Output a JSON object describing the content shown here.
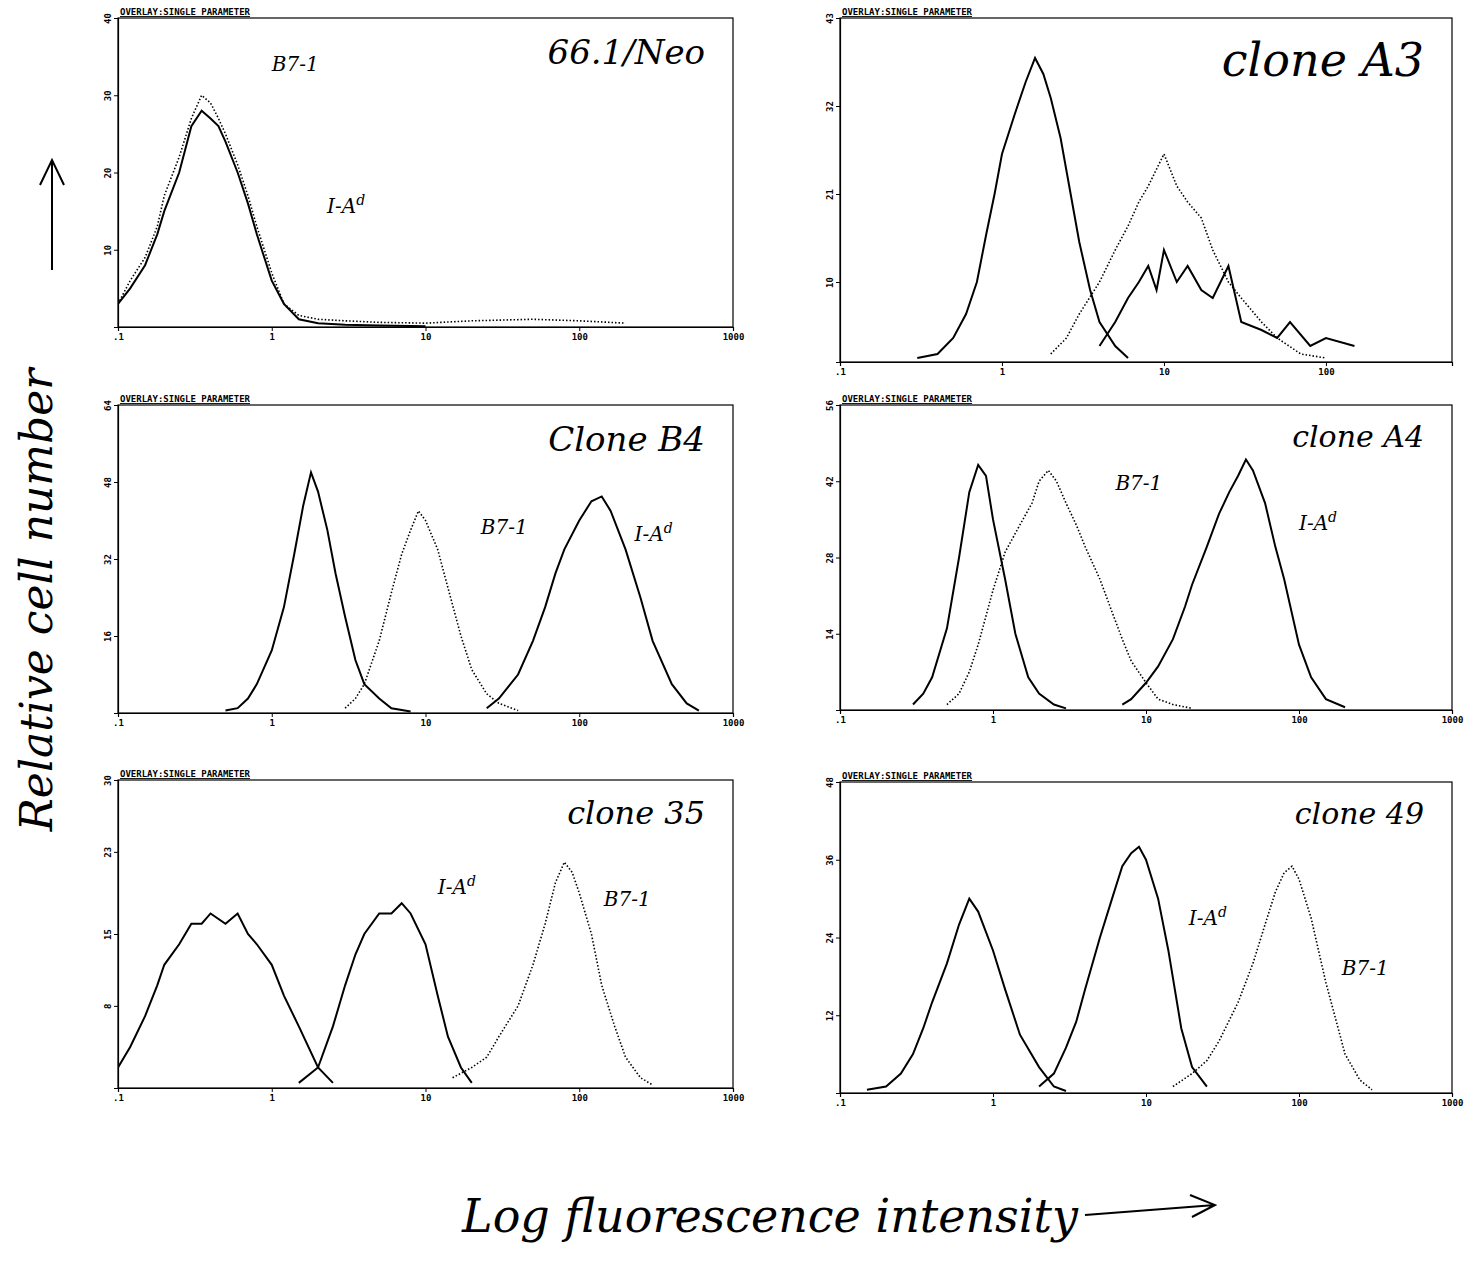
{
  "x_label": "Log fluorescence intensity",
  "y_label": "Relative cell number",
  "chart_data": [
    {
      "type": "line",
      "title": "66.1/Neo",
      "subtitle": "OVERLAY:SINGLE PARAMETER",
      "log": "x",
      "xlim": [
        0.1,
        1000
      ],
      "xticks": [
        {
          "value": 0.1,
          "label": ".1"
        },
        1,
        10,
        100,
        1000
      ],
      "ylim": [
        0,
        40
      ],
      "yticks": [
        10,
        20,
        30,
        40
      ],
      "annotations": [
        "B7-1",
        "I-Ad"
      ],
      "series": [
        {
          "color": "#000000",
          "line_style": "solid",
          "x": [
            0.1,
            0.12,
            0.15,
            0.18,
            0.2,
            0.25,
            0.3,
            0.35,
            0.4,
            0.45,
            0.5,
            0.6,
            0.7,
            0.8,
            1.0,
            1.2,
            1.5,
            2,
            3,
            5,
            10
          ],
          "values": [
            3,
            5,
            8,
            12,
            15,
            20,
            26,
            28,
            27,
            26,
            24,
            20,
            16,
            12,
            6,
            3,
            1,
            0.5,
            0.3,
            0.2,
            0.1
          ]
        },
        {
          "color": "#000000",
          "line_style": "dotted",
          "x": [
            0.1,
            0.12,
            0.15,
            0.18,
            0.2,
            0.25,
            0.3,
            0.35,
            0.4,
            0.45,
            0.5,
            0.6,
            0.7,
            0.8,
            1.0,
            1.2,
            1.5,
            2,
            3,
            5,
            10,
            20,
            50,
            100,
            200
          ],
          "values": [
            3,
            6,
            9,
            13,
            17,
            22,
            27,
            30,
            29,
            27,
            25,
            21,
            17,
            13,
            7,
            3,
            1.5,
            1,
            0.8,
            0.6,
            0.5,
            0.8,
            1,
            0.8,
            0.5
          ]
        }
      ]
    },
    {
      "type": "line",
      "title": "clone A3",
      "subtitle": "OVERLAY:SINGLE PARAMETER",
      "log": "x",
      "xlim": [
        0.1,
        600
      ],
      "xticks": [
        {
          "value": 0.1,
          "label": ".1"
        },
        1,
        10,
        100
      ],
      "ylim": [
        0,
        43
      ],
      "yticks": [
        10,
        21,
        32,
        43
      ],
      "annotations": [],
      "series": [
        {
          "color": "#000000",
          "line_style": "solid",
          "x": [
            0.3,
            0.4,
            0.5,
            0.6,
            0.7,
            0.8,
            0.9,
            1,
            1.2,
            1.4,
            1.6,
            1.8,
            2,
            2.3,
            2.6,
            3,
            3.5,
            4,
            5,
            6
          ],
          "values": [
            0.5,
            1,
            3,
            6,
            10,
            16,
            21,
            26,
            31,
            35,
            38,
            36,
            33,
            28,
            22,
            15,
            9,
            5,
            2,
            0.5
          ]
        },
        {
          "color": "#000000",
          "line_style": "solid",
          "x": [
            4,
            5,
            6,
            7,
            8,
            9,
            10,
            12,
            14,
            17,
            20,
            25,
            30,
            40,
            50,
            60,
            80,
            100,
            150
          ],
          "values": [
            2,
            5,
            8,
            10,
            12,
            9,
            14,
            10,
            12,
            9,
            8,
            12,
            5,
            4,
            3,
            5,
            2,
            3,
            2
          ]
        },
        {
          "color": "#000000",
          "line_style": "dotted",
          "x": [
            2,
            2.5,
            3,
            4,
            5,
            6,
            7,
            8,
            10,
            12,
            14,
            17,
            20,
            25,
            30,
            40,
            50,
            70,
            100
          ],
          "values": [
            1,
            3,
            6,
            10,
            14,
            17,
            20,
            22,
            26,
            22,
            20,
            18,
            14,
            10,
            8,
            5,
            3,
            1,
            0.5
          ]
        }
      ]
    },
    {
      "type": "line",
      "title": "Clone B4",
      "subtitle": "OVERLAY:SINGLE PARAMETER",
      "log": "x",
      "xlim": [
        0.1,
        1000
      ],
      "xticks": [
        {
          "value": 0.1,
          "label": ".1"
        },
        1,
        10,
        100,
        1000
      ],
      "ylim": [
        0,
        64
      ],
      "yticks": [
        16,
        32,
        48,
        64
      ],
      "annotations": [
        "B7-1",
        "I-Ad"
      ],
      "series": [
        {
          "color": "#000000",
          "line_style": "solid",
          "x": [
            0.5,
            0.6,
            0.7,
            0.8,
            1,
            1.2,
            1.4,
            1.6,
            1.8,
            2,
            2.3,
            2.6,
            3,
            3.5,
            4,
            5,
            6,
            8
          ],
          "values": [
            0.5,
            1,
            3,
            6,
            13,
            22,
            33,
            43,
            50,
            46,
            38,
            29,
            20,
            11,
            6,
            3,
            1,
            0.3
          ]
        },
        {
          "color": "#000000",
          "line_style": "dotted",
          "x": [
            3,
            3.5,
            4,
            5,
            6,
            7,
            8,
            9,
            10,
            12,
            14,
            17,
            20,
            25,
            30,
            40
          ],
          "values": [
            1,
            3,
            6,
            15,
            25,
            33,
            38,
            42,
            40,
            34,
            26,
            16,
            9,
            4,
            2,
            0.5
          ]
        },
        {
          "color": "#000000",
          "line_style": "solid",
          "x": [
            25,
            30,
            40,
            50,
            60,
            70,
            80,
            100,
            120,
            140,
            160,
            200,
            250,
            300,
            400,
            500,
            600
          ],
          "values": [
            1,
            3,
            8,
            15,
            22,
            29,
            34,
            40,
            44,
            45,
            42,
            34,
            24,
            15,
            6,
            2,
            0.5
          ]
        }
      ]
    },
    {
      "type": "line",
      "title": "clone A4",
      "subtitle": "OVERLAY:SINGLE PARAMETER",
      "log": "x",
      "xlim": [
        0.1,
        1000
      ],
      "xticks": [
        {
          "value": 0.1,
          "label": ".1"
        },
        1,
        10,
        100,
        1000
      ],
      "ylim": [
        0,
        56
      ],
      "yticks": [
        14,
        28,
        42,
        56
      ],
      "annotations": [
        "B7-1",
        "I-Ad"
      ],
      "series": [
        {
          "color": "#000000",
          "line_style": "solid",
          "x": [
            0.3,
            0.35,
            0.4,
            0.5,
            0.6,
            0.7,
            0.8,
            0.9,
            1,
            1.2,
            1.4,
            1.7,
            2,
            2.5,
            3
          ],
          "values": [
            1,
            3,
            6,
            15,
            28,
            40,
            45,
            43,
            35,
            24,
            14,
            6,
            3,
            1,
            0.3
          ]
        },
        {
          "color": "#000000",
          "line_style": "dotted",
          "x": [
            0.5,
            0.6,
            0.7,
            0.8,
            1,
            1.2,
            1.5,
            1.8,
            2,
            2.3,
            2.6,
            3,
            3.5,
            4,
            5,
            6,
            7,
            8,
            10,
            12,
            15,
            20
          ],
          "values": [
            1,
            3,
            7,
            12,
            22,
            29,
            34,
            38,
            42,
            44,
            42,
            38,
            34,
            30,
            24,
            18,
            13,
            9,
            5,
            2,
            1,
            0.3
          ]
        },
        {
          "color": "#000000",
          "line_style": "solid",
          "x": [
            7,
            8,
            10,
            12,
            15,
            18,
            20,
            25,
            30,
            35,
            40,
            45,
            50,
            60,
            70,
            80,
            100,
            120,
            150,
            200
          ],
          "values": [
            1,
            2,
            5,
            8,
            13,
            19,
            23,
            30,
            36,
            40,
            43,
            46,
            44,
            38,
            30,
            24,
            12,
            6,
            2,
            0.5
          ]
        }
      ]
    },
    {
      "type": "line",
      "title": "clone 35",
      "subtitle": "OVERLAY:SINGLE PARAMETER",
      "log": "x",
      "xlim": [
        0.1,
        1000
      ],
      "xticks": [
        {
          "value": 0.1,
          "label": ".1"
        },
        1,
        10,
        100,
        1000
      ],
      "ylim": [
        0,
        30
      ],
      "yticks": [
        8,
        15,
        23,
        30
      ],
      "annotations": [
        "I-Ad",
        "B7-1"
      ],
      "series": [
        {
          "color": "#000000",
          "line_style": "solid",
          "x": [
            0.1,
            0.12,
            0.15,
            0.18,
            0.2,
            0.25,
            0.3,
            0.35,
            0.4,
            0.5,
            0.6,
            0.7,
            0.8,
            1,
            1.2,
            1.5,
            2,
            2.5
          ],
          "values": [
            2,
            4,
            7,
            10,
            12,
            14,
            16,
            16,
            17,
            16,
            17,
            15,
            14,
            12,
            9,
            6,
            2,
            0.5
          ]
        },
        {
          "color": "#000000",
          "line_style": "solid",
          "x": [
            1.5,
            2,
            2.5,
            3,
            3.5,
            4,
            5,
            6,
            7,
            8,
            10,
            12,
            14,
            17,
            20
          ],
          "values": [
            0.5,
            2,
            6,
            10,
            13,
            15,
            17,
            17,
            18,
            17,
            14,
            9,
            5,
            2,
            0.5
          ]
        },
        {
          "color": "#000000",
          "line_style": "dotted",
          "x": [
            15,
            20,
            25,
            30,
            40,
            50,
            60,
            70,
            80,
            90,
            100,
            120,
            140,
            170,
            200,
            250,
            300
          ],
          "values": [
            1,
            2,
            3,
            5,
            8,
            12,
            16,
            20,
            22,
            21,
            19,
            15,
            10,
            6,
            3,
            1,
            0.3
          ]
        }
      ]
    },
    {
      "type": "line",
      "title": "clone 49",
      "subtitle": "OVERLAY:SINGLE PARAMETER",
      "log": "x",
      "xlim": [
        0.1,
        1000
      ],
      "xticks": [
        {
          "value": 0.1,
          "label": ".1"
        },
        1,
        10,
        100,
        1000
      ],
      "ylim": [
        0,
        48
      ],
      "yticks": [
        12,
        24,
        36,
        48
      ],
      "annotations": [
        "I-Ad",
        "B7-1"
      ],
      "series": [
        {
          "color": "#000000",
          "line_style": "solid",
          "x": [
            0.15,
            0.2,
            0.25,
            0.3,
            0.35,
            0.4,
            0.5,
            0.6,
            0.7,
            0.8,
            1,
            1.2,
            1.5,
            2,
            2.5,
            3
          ],
          "values": [
            0.5,
            1,
            3,
            6,
            10,
            14,
            20,
            26,
            30,
            28,
            22,
            16,
            9,
            4,
            1,
            0.3
          ]
        },
        {
          "color": "#000000",
          "line_style": "solid",
          "x": [
            2,
            2.5,
            3,
            3.5,
            4,
            5,
            6,
            7,
            8,
            9,
            10,
            12,
            14,
            17,
            20,
            25
          ],
          "values": [
            1,
            3,
            7,
            11,
            16,
            24,
            30,
            35,
            37,
            38,
            36,
            30,
            22,
            10,
            4,
            1
          ]
        },
        {
          "color": "#000000",
          "line_style": "dotted",
          "x": [
            15,
            20,
            25,
            30,
            40,
            50,
            60,
            70,
            80,
            90,
            100,
            120,
            150,
            200,
            250,
            300
          ],
          "values": [
            1,
            3,
            5,
            8,
            14,
            20,
            26,
            31,
            34,
            35,
            33,
            27,
            17,
            6,
            2,
            0.5
          ]
        }
      ]
    }
  ]
}
